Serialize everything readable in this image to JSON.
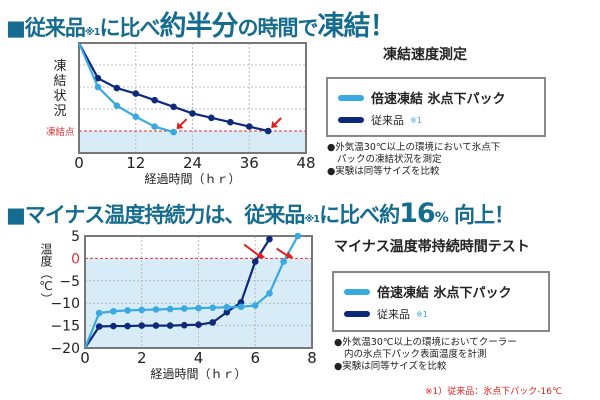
{
  "headline1": {
    "square": "■",
    "a": "従来品",
    "note": "※1",
    "b": "に比べ",
    "c": "約半分",
    "d": "の時間で",
    "e": "凍結！"
  },
  "headline2": {
    "square": "■",
    "a": "マイナス温度持続力は、従来品",
    "note": "※1",
    "b": "に比べ約",
    "c": "16",
    "d": "%",
    "e": " 向上！"
  },
  "colors": {
    "fast": "#3aa9e0",
    "conventional": "#0d2a7a",
    "freeze_line": "#e03030",
    "fill": "#d8ecf8",
    "arrow": "#e02020",
    "headline": "#156c8e"
  },
  "legend": {
    "fast_label": "倍速凍結 氷点下パック",
    "conventional_label": "従来品",
    "conventional_note": "※1"
  },
  "chart_data": [
    {
      "type": "line",
      "title": "凍結速度測定",
      "xlabel": "経過時間（ｈｒ）",
      "ylabel": "凍結状況",
      "xlim": [
        0,
        48
      ],
      "xticks": [
        0,
        12,
        24,
        36,
        48
      ],
      "ylim": [
        0,
        100
      ],
      "grid": true,
      "reference_line": {
        "label": "凍結点",
        "y": 20
      },
      "series": [
        {
          "name": "倍速凍結 氷点下パック",
          "x": [
            0,
            4,
            8,
            12,
            16,
            20
          ],
          "y": [
            100,
            60,
            43,
            33,
            24,
            19
          ]
        },
        {
          "name": "従来品",
          "x": [
            0,
            4,
            8,
            12,
            16,
            20,
            24,
            28,
            32,
            36,
            40
          ],
          "y": [
            100,
            68,
            59,
            54,
            48,
            42,
            36,
            32,
            28,
            24,
            20
          ]
        }
      ],
      "notes": [
        "●外気温30℃以上の環境において氷点下",
        "パックの凍結状況を測定",
        "●実験は同等サイズを比較"
      ]
    },
    {
      "type": "line",
      "title": "マイナス温度帯持続時間テスト",
      "xlabel": "経過時間（ｈｒ）",
      "ylabel": "温度（℃）",
      "xlim": [
        0,
        8
      ],
      "xticks": [
        0,
        2,
        4,
        6,
        8
      ],
      "ylim": [
        -20,
        5
      ],
      "yticks": [
        5,
        0,
        -5,
        -10,
        -15,
        -20
      ],
      "yticklabels": [
        "5",
        "0",
        "−5",
        "−10",
        "−15",
        "−20"
      ],
      "grid": true,
      "reference_line": {
        "y": 0
      },
      "series": [
        {
          "name": "倍速凍結 氷点下パック",
          "x": [
            0,
            0.5,
            1,
            1.5,
            2,
            2.5,
            3,
            3.5,
            4,
            4.5,
            5,
            5.5,
            6,
            6.5,
            7,
            7.5
          ],
          "y": [
            -20,
            -12.2,
            -11.8,
            -11.6,
            -11.5,
            -11.4,
            -11.3,
            -11.2,
            -11.1,
            -11,
            -10.9,
            -10.8,
            -10.5,
            -7.8,
            -0.7,
            5
          ]
        },
        {
          "name": "従来品",
          "x": [
            0,
            0.5,
            1,
            1.5,
            2,
            2.5,
            3,
            3.5,
            4,
            4.5,
            5,
            5.5,
            6,
            6.5
          ],
          "y": [
            -20,
            -15.2,
            -15.1,
            -15.1,
            -15,
            -15,
            -15,
            -14.9,
            -14.8,
            -14.3,
            -12,
            -9.8,
            -0.7,
            4.3
          ]
        }
      ],
      "notes": [
        "●外気温30℃以上の環境においてクーラー",
        "内の氷点下パック表面温度を計測",
        "●実験は同等サイズを比較"
      ]
    }
  ],
  "footnote": "※1）従来品：氷点下パック-16℃"
}
